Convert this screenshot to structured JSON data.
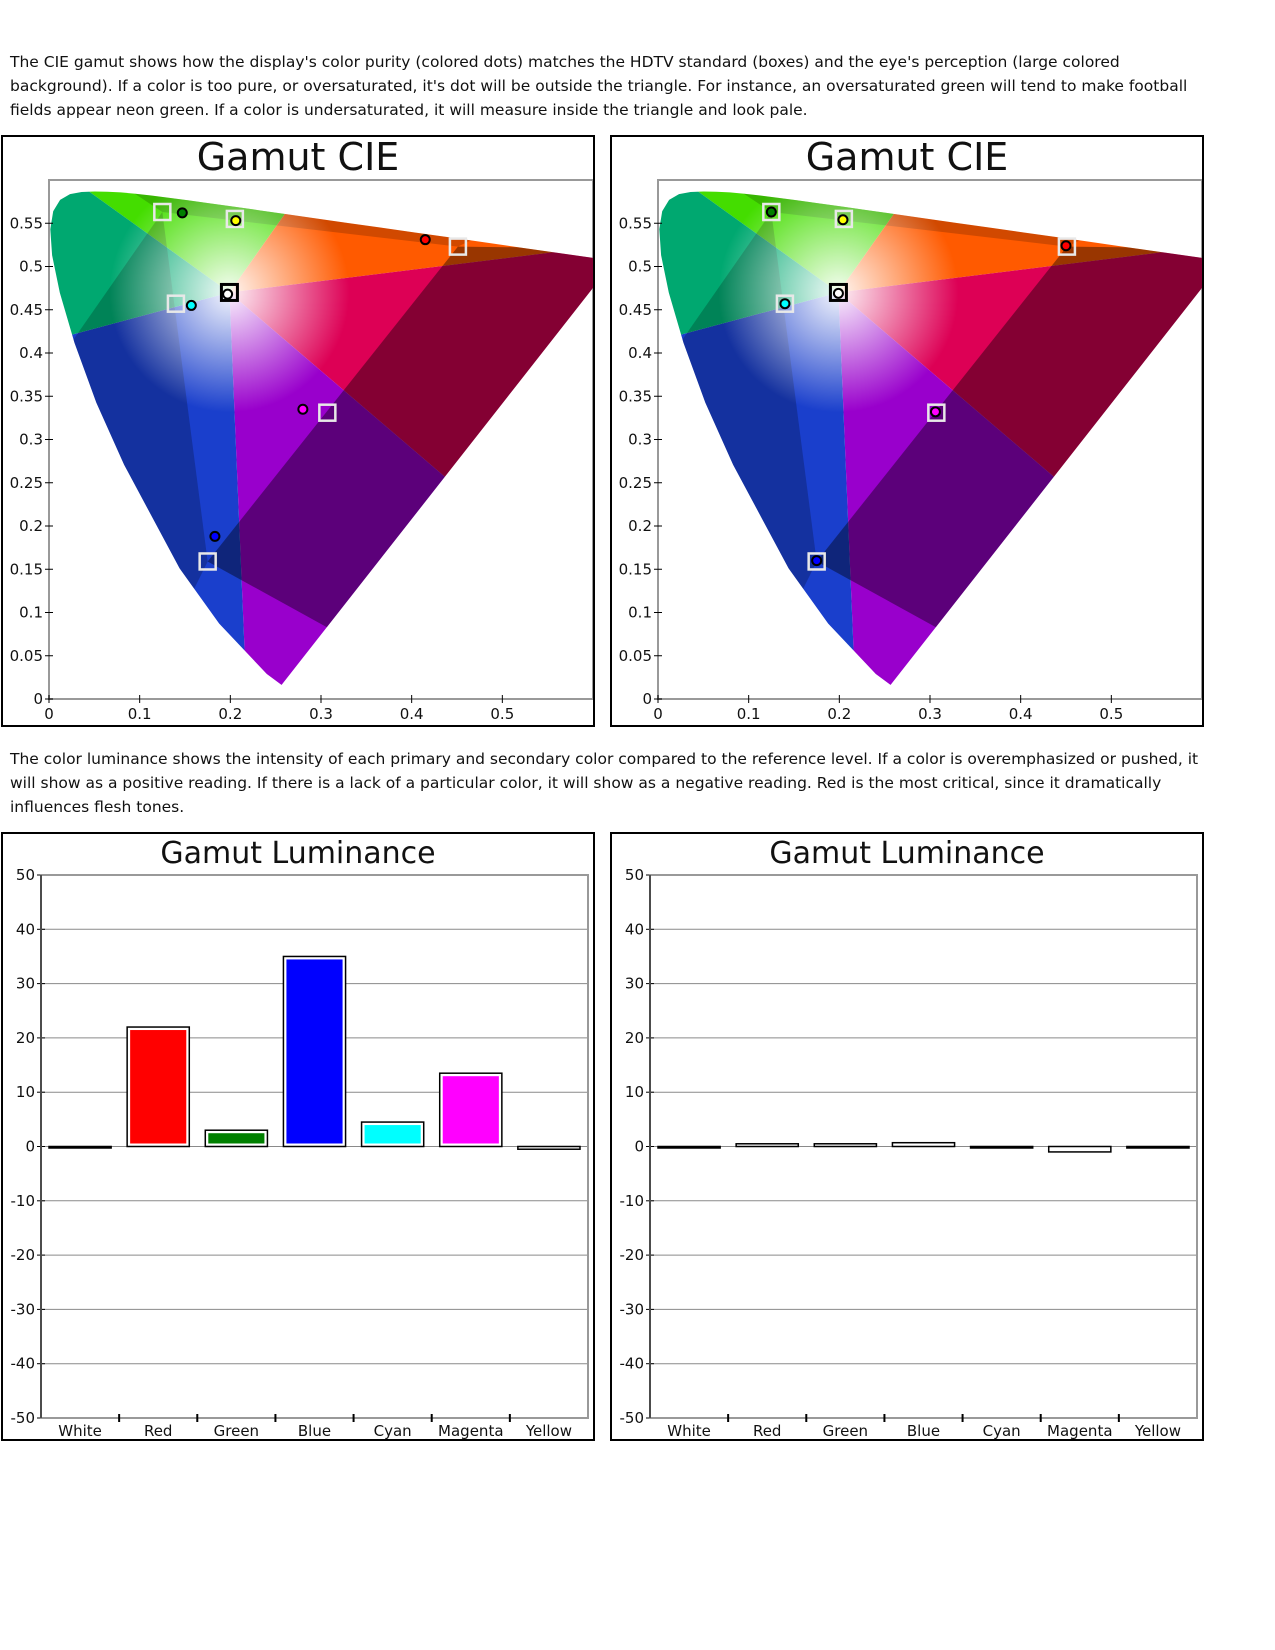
{
  "paragraphs": {
    "cie": "The CIE gamut shows how the display's color purity (colored dots) matches the HDTV standard (boxes) and the eye's perception (large colored background).  If a color is too pure, or oversaturated, it's dot will be outside the triangle.  For instance, an oversaturated green will tend to make football fields appear neon green.   If a color is undersaturated, it will measure inside the triangle and look pale.",
    "luminance": "The color luminance shows the intensity of each primary and secondary color compared to the reference level.  If a color is overemphasized or pushed, it will show as a positive reading.  If there is a lack of a particular color, it will show as a negative reading.  Red is the most critical, since it dramatically influences flesh tones."
  },
  "colors": {
    "white": "#ffffff",
    "red": "#ff0000",
    "green": "#008000",
    "blue": "#0000ff",
    "cyan": "#00ffff",
    "magenta": "#ff00ff",
    "yellow": "#ffff00"
  },
  "chart_data": [
    {
      "type": "scatter",
      "title": "Gamut CIE",
      "xlim": [
        0,
        0.6
      ],
      "ylim": [
        0,
        0.6
      ],
      "xticks": [
        "0",
        "0.1",
        "0.2",
        "0.3",
        "0.4",
        "0.5"
      ],
      "yticks": [
        "0",
        "0.05",
        "0.1",
        "0.15",
        "0.2",
        "0.25",
        "0.3",
        "0.35",
        "0.4",
        "0.45",
        "0.5",
        "0.55"
      ],
      "grid": false,
      "targets": [
        {
          "name": "Green",
          "x": 0.125,
          "y": 0.563
        },
        {
          "name": "Yellow",
          "x": 0.205,
          "y": 0.555
        },
        {
          "name": "Red",
          "x": 0.451,
          "y": 0.523
        },
        {
          "name": "Cyan",
          "x": 0.14,
          "y": 0.457
        },
        {
          "name": "White",
          "x": 0.199,
          "y": 0.47
        },
        {
          "name": "Magenta",
          "x": 0.307,
          "y": 0.331
        },
        {
          "name": "Blue",
          "x": 0.175,
          "y": 0.159
        }
      ],
      "measured": [
        {
          "name": "Green",
          "x": 0.147,
          "y": 0.562
        },
        {
          "name": "Yellow",
          "x": 0.206,
          "y": 0.553
        },
        {
          "name": "Red",
          "x": 0.415,
          "y": 0.531
        },
        {
          "name": "Cyan",
          "x": 0.157,
          "y": 0.455
        },
        {
          "name": "White",
          "x": 0.197,
          "y": 0.468
        },
        {
          "name": "Magenta",
          "x": 0.28,
          "y": 0.335
        },
        {
          "name": "Blue",
          "x": 0.183,
          "y": 0.188
        }
      ]
    },
    {
      "type": "scatter",
      "title": "Gamut CIE",
      "xlim": [
        0,
        0.6
      ],
      "ylim": [
        0,
        0.6
      ],
      "xticks": [
        "0",
        "0.1",
        "0.2",
        "0.3",
        "0.4",
        "0.5"
      ],
      "yticks": [
        "0",
        "0.05",
        "0.1",
        "0.15",
        "0.2",
        "0.25",
        "0.3",
        "0.35",
        "0.4",
        "0.45",
        "0.5",
        "0.55"
      ],
      "grid": false,
      "targets": [
        {
          "name": "Green",
          "x": 0.125,
          "y": 0.563
        },
        {
          "name": "Yellow",
          "x": 0.205,
          "y": 0.555
        },
        {
          "name": "Red",
          "x": 0.451,
          "y": 0.523
        },
        {
          "name": "Cyan",
          "x": 0.14,
          "y": 0.457
        },
        {
          "name": "White",
          "x": 0.199,
          "y": 0.47
        },
        {
          "name": "Magenta",
          "x": 0.307,
          "y": 0.331
        },
        {
          "name": "Blue",
          "x": 0.175,
          "y": 0.159
        }
      ],
      "measured": [
        {
          "name": "Green",
          "x": 0.125,
          "y": 0.563
        },
        {
          "name": "Yellow",
          "x": 0.204,
          "y": 0.554
        },
        {
          "name": "Red",
          "x": 0.45,
          "y": 0.524
        },
        {
          "name": "Cyan",
          "x": 0.14,
          "y": 0.457
        },
        {
          "name": "White",
          "x": 0.199,
          "y": 0.469
        },
        {
          "name": "Magenta",
          "x": 0.306,
          "y": 0.332
        },
        {
          "name": "Blue",
          "x": 0.175,
          "y": 0.16
        }
      ]
    },
    {
      "type": "bar",
      "title": "Gamut Luminance",
      "categories": [
        "White",
        "Red",
        "Green",
        "Blue",
        "Cyan",
        "Magenta",
        "Yellow"
      ],
      "values": [
        0,
        22,
        3,
        35,
        4.5,
        13.5,
        -0.5
      ],
      "ylim": [
        -50,
        50
      ],
      "yticks": [
        "-50",
        "-40",
        "-30",
        "-20",
        "-10",
        "0",
        "10",
        "20",
        "30",
        "40",
        "50"
      ],
      "grid": true
    },
    {
      "type": "bar",
      "title": "Gamut Luminance",
      "categories": [
        "White",
        "Red",
        "Green",
        "Blue",
        "Cyan",
        "Magenta",
        "Yellow"
      ],
      "values": [
        0,
        0.5,
        0.5,
        0.7,
        0,
        -1,
        0
      ],
      "ylim": [
        -50,
        50
      ],
      "yticks": [
        "-50",
        "-40",
        "-30",
        "-20",
        "-10",
        "0",
        "10",
        "20",
        "30",
        "40",
        "50"
      ],
      "grid": true
    }
  ]
}
